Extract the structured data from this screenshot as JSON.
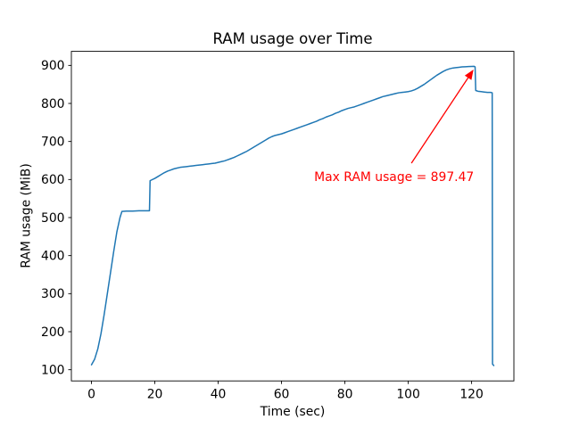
{
  "chart_data": {
    "type": "line",
    "title": "RAM usage over Time",
    "xlabel": "Time (sec)",
    "ylabel": "RAM usage (MiB)",
    "xlim": [
      -6.35,
      133.35
    ],
    "ylim": [
      70.6,
      936.9
    ],
    "xticks": [
      0,
      20,
      40,
      60,
      80,
      100,
      120
    ],
    "yticks": [
      100,
      200,
      300,
      400,
      500,
      600,
      700,
      800,
      900
    ],
    "grid": false,
    "legend": null,
    "line_color": "#1f77b4",
    "axis_color": "#000000",
    "max_value": 897.47,
    "series": [
      {
        "name": "RAM usage",
        "points": [
          [
            0,
            113
          ],
          [
            1,
            128
          ],
          [
            2,
            155
          ],
          [
            3,
            195
          ],
          [
            4,
            245
          ],
          [
            5,
            300
          ],
          [
            6,
            355
          ],
          [
            7,
            410
          ],
          [
            8,
            462
          ],
          [
            9,
            500
          ],
          [
            9.6,
            516
          ],
          [
            11,
            517
          ],
          [
            13,
            517
          ],
          [
            15,
            518
          ],
          [
            17,
            518
          ],
          [
            18.3,
            518
          ],
          [
            18.5,
            597
          ],
          [
            19,
            599
          ],
          [
            20,
            603
          ],
          [
            21,
            608
          ],
          [
            22,
            613
          ],
          [
            23,
            618
          ],
          [
            24,
            622
          ],
          [
            25,
            625
          ],
          [
            26,
            628
          ],
          [
            27,
            630
          ],
          [
            28,
            632
          ],
          [
            29,
            633
          ],
          [
            30,
            634
          ],
          [
            31,
            635
          ],
          [
            32,
            636
          ],
          [
            33,
            637
          ],
          [
            34,
            638
          ],
          [
            35,
            639
          ],
          [
            36,
            640
          ],
          [
            37,
            641
          ],
          [
            38,
            642
          ],
          [
            39,
            643
          ],
          [
            40,
            645
          ],
          [
            41,
            647
          ],
          [
            42,
            649
          ],
          [
            43,
            652
          ],
          [
            44,
            655
          ],
          [
            45,
            658
          ],
          [
            46,
            662
          ],
          [
            47,
            666
          ],
          [
            48,
            670
          ],
          [
            49,
            674
          ],
          [
            50,
            679
          ],
          [
            51,
            684
          ],
          [
            52,
            689
          ],
          [
            53,
            694
          ],
          [
            54,
            699
          ],
          [
            55,
            704
          ],
          [
            56,
            709
          ],
          [
            57,
            713
          ],
          [
            58,
            716
          ],
          [
            59,
            718
          ],
          [
            60,
            720
          ],
          [
            61,
            723
          ],
          [
            62,
            726
          ],
          [
            63,
            729
          ],
          [
            64,
            732
          ],
          [
            65,
            735
          ],
          [
            66,
            738
          ],
          [
            67,
            741
          ],
          [
            68,
            744
          ],
          [
            69,
            747
          ],
          [
            70,
            750
          ],
          [
            71,
            753
          ],
          [
            72,
            757
          ],
          [
            73,
            760
          ],
          [
            74,
            764
          ],
          [
            75,
            767
          ],
          [
            76,
            770
          ],
          [
            77,
            774
          ],
          [
            78,
            777
          ],
          [
            79,
            781
          ],
          [
            80,
            784
          ],
          [
            81,
            787
          ],
          [
            82,
            789
          ],
          [
            83,
            791
          ],
          [
            84,
            794
          ],
          [
            85,
            797
          ],
          [
            86,
            800
          ],
          [
            87,
            803
          ],
          [
            88,
            806
          ],
          [
            89,
            809
          ],
          [
            90,
            812
          ],
          [
            91,
            815
          ],
          [
            92,
            818
          ],
          [
            93,
            820
          ],
          [
            94,
            822
          ],
          [
            95,
            824
          ],
          [
            96,
            826
          ],
          [
            97,
            828
          ],
          [
            98,
            829
          ],
          [
            99,
            830
          ],
          [
            100,
            831
          ],
          [
            101,
            833
          ],
          [
            102,
            836
          ],
          [
            103,
            840
          ],
          [
            104,
            845
          ],
          [
            105,
            850
          ],
          [
            106,
            856
          ],
          [
            107,
            862
          ],
          [
            108,
            868
          ],
          [
            109,
            874
          ],
          [
            110,
            879
          ],
          [
            111,
            884
          ],
          [
            112,
            888
          ],
          [
            113,
            891
          ],
          [
            114,
            893
          ],
          [
            115,
            894
          ],
          [
            116,
            895
          ],
          [
            117,
            896
          ],
          [
            118,
            896.5
          ],
          [
            119,
            897
          ],
          [
            120,
            897.2
          ],
          [
            120.8,
            897.47
          ],
          [
            121.1,
            896
          ],
          [
            121.3,
            834
          ],
          [
            122,
            832
          ],
          [
            123,
            831
          ],
          [
            124,
            830
          ],
          [
            125,
            829
          ],
          [
            126,
            829
          ],
          [
            126.5,
            828
          ],
          [
            126.6,
            115
          ],
          [
            127,
            111
          ]
        ]
      }
    ],
    "annotation": {
      "text": "Max RAM usage = 897.47",
      "color": "#ff0000",
      "text_pos": [
        70.3,
        596
      ],
      "arrow_tail": [
        101.0,
        643
      ],
      "arrow_tip": [
        120.6,
        889
      ]
    }
  }
}
